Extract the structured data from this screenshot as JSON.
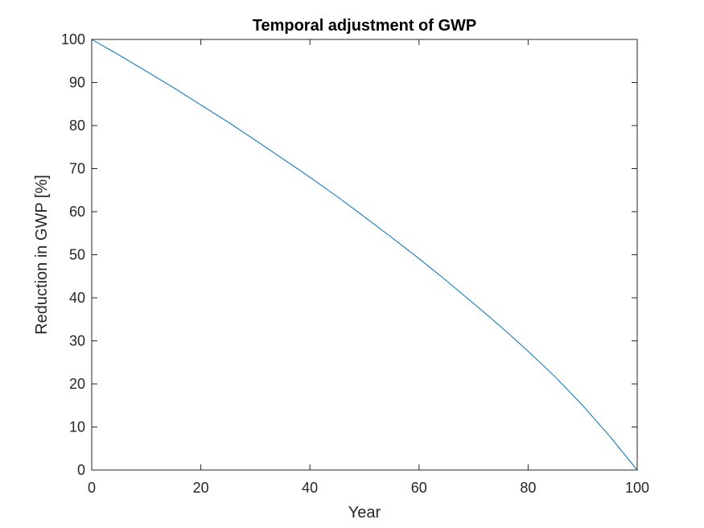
{
  "chart_data": {
    "type": "line",
    "title": "Temporal adjustment of GWP",
    "xlabel": "Year",
    "ylabel": "Reduction in GWP [%]",
    "xlim": [
      0,
      100
    ],
    "ylim": [
      0,
      100
    ],
    "xticks": [
      0,
      20,
      40,
      60,
      80,
      100
    ],
    "yticks": [
      0,
      10,
      20,
      30,
      40,
      50,
      60,
      70,
      80,
      90,
      100
    ],
    "grid": false,
    "legend": "none",
    "series": [
      {
        "color": "#0072bd",
        "x": [
          0,
          5,
          10,
          15,
          20,
          25,
          30,
          35,
          40,
          45,
          50,
          55,
          60,
          65,
          70,
          75,
          80,
          85,
          90,
          95,
          100
        ],
        "y": [
          100,
          96.4,
          92.6,
          88.8,
          84.8,
          80.8,
          76.6,
          72.3,
          68.0,
          63.5,
          58.8,
          54.0,
          49.1,
          44.0,
          38.7,
          33.3,
          27.6,
          21.6,
          15.0,
          7.8,
          0
        ]
      }
    ]
  }
}
